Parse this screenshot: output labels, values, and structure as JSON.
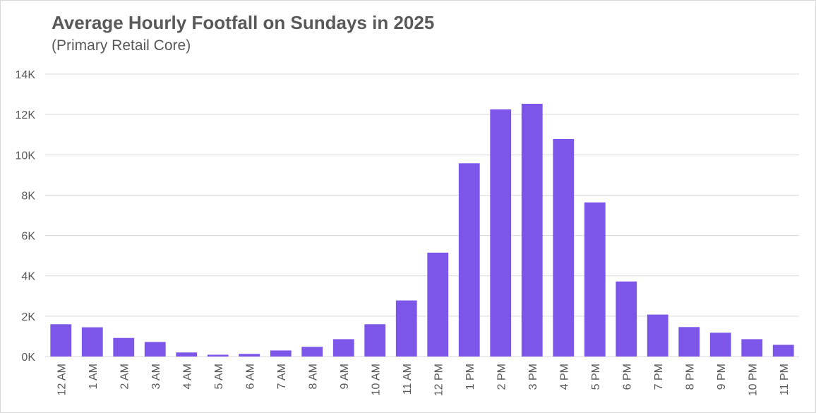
{
  "chart_data": {
    "type": "bar",
    "title": "Average Hourly Footfall on Sundays in 2025",
    "subtitle": "(Primary Retail Core)",
    "xlabel": "",
    "ylabel": "",
    "categories": [
      "12 AM",
      "1 AM",
      "2 AM",
      "3 AM",
      "4 AM",
      "5 AM",
      "6 AM",
      "7 AM",
      "8 AM",
      "9 AM",
      "10 AM",
      "11 AM",
      "12 PM",
      "1 PM",
      "2 PM",
      "3 PM",
      "4 PM",
      "5 PM",
      "6 PM",
      "7 PM",
      "8 PM",
      "9 PM",
      "10 PM",
      "11 PM"
    ],
    "values": [
      1600,
      1450,
      920,
      720,
      200,
      90,
      130,
      300,
      480,
      860,
      1600,
      2780,
      5150,
      9580,
      12250,
      12530,
      10780,
      7640,
      3720,
      2080,
      1460,
      1180,
      860,
      580
    ],
    "ylim": [
      0,
      14000
    ],
    "yticks": [
      0,
      2000,
      4000,
      6000,
      8000,
      10000,
      12000,
      14000
    ],
    "ytick_labels": [
      "0K",
      "2K",
      "4K",
      "6K",
      "8K",
      "10K",
      "12K",
      "14K"
    ],
    "grid": true,
    "legend": "none",
    "colors": {
      "bar": "#7b56e8",
      "grid": "#d9d9d9",
      "text": "#595959"
    }
  }
}
